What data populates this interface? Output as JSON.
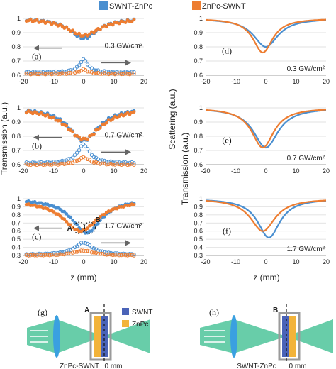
{
  "colors": {
    "blue": "#4a8fd0",
    "orange": "#ed7d31",
    "beam": "#4ec49a",
    "lens": "#3aa0e0",
    "swnt": "#4a63b8",
    "znpc": "#f2b33a",
    "cell": "#9a9a9a"
  },
  "legend": [
    "SWNT-ZnPc",
    "ZnPc-SWNT"
  ],
  "axis_titles": {
    "left_y": "Transmission (a.u.)",
    "mid_y": "Scattering (a.u.)",
    "right_y": "Transmission (a.u.)",
    "x": "z (mm)"
  },
  "chart_data": [
    {
      "panel": "(a)",
      "type": "scatter",
      "annotation": "0.3 GW/cm²",
      "xlim": [
        -20,
        20
      ],
      "ylim": [
        0.6,
        1.0
      ],
      "xticks": [
        "-20",
        "-10",
        "0",
        "10",
        "20"
      ],
      "yticks": [
        "1",
        "0.9",
        "0.8",
        "0.7",
        "0.6"
      ],
      "series": [
        {
          "name": "SWNT-ZnPc",
          "kind": "transmission",
          "dip": 0.14,
          "width": 5.5,
          "base": 1.0
        },
        {
          "name": "ZnPc-SWNT",
          "kind": "transmission",
          "dip": 0.12,
          "width": 6.5,
          "base": 1.0
        },
        {
          "name": "SWNT-ZnPc",
          "kind": "scattering",
          "peak": 0.09,
          "width": 1.8,
          "base": 0.62
        },
        {
          "name": "ZnPc-SWNT",
          "kind": "scattering",
          "peak": 0.03,
          "width": 1.8,
          "base": 0.61
        }
      ]
    },
    {
      "panel": "(b)",
      "type": "scatter",
      "annotation": "0.7 GW/cm²",
      "xlim": [
        -20,
        20
      ],
      "ylim": [
        0.6,
        1.0
      ],
      "xticks": [
        "-20",
        "-10",
        "0",
        "10",
        "20"
      ],
      "yticks": [
        "1",
        "0.9",
        "0.8",
        "0.7",
        "0.6"
      ],
      "series": [
        {
          "name": "SWNT-ZnPc",
          "kind": "transmission",
          "dip": 0.23,
          "width": 6.0,
          "base": 1.0
        },
        {
          "name": "ZnPc-SWNT",
          "kind": "transmission",
          "dip": 0.22,
          "width": 7.0,
          "base": 1.0
        },
        {
          "name": "SWNT-ZnPc",
          "kind": "scattering",
          "peak": 0.13,
          "width": 2.5,
          "base": 0.61
        },
        {
          "name": "ZnPc-SWNT",
          "kind": "scattering",
          "peak": 0.05,
          "width": 2.5,
          "base": 0.6
        }
      ]
    },
    {
      "panel": "(c)",
      "type": "scatter",
      "annotation": "1.7 GW/cm²",
      "xlim": [
        -20,
        20
      ],
      "ylim": [
        0.3,
        1.0
      ],
      "xticks": [
        "-20",
        "-10",
        "0",
        "10",
        "20"
      ],
      "yticks": [
        "1",
        "0.9",
        "0.8",
        "0.7",
        "0.6",
        "0.5",
        "0.4",
        "0.3"
      ],
      "series": [
        {
          "name": "SWNT-ZnPc",
          "kind": "transmission",
          "dip": 0.42,
          "width": 6.0,
          "base": 1.0,
          "center": 1.0
        },
        {
          "name": "ZnPc-SWNT",
          "kind": "transmission",
          "dip": 0.38,
          "width": 7.0,
          "base": 0.98,
          "center": -1.0
        },
        {
          "name": "SWNT-ZnPc",
          "kind": "scattering",
          "peak": 0.15,
          "width": 3.5,
          "base": 0.31
        },
        {
          "name": "ZnPc-SWNT",
          "kind": "scattering",
          "peak": 0.06,
          "width": 4.0,
          "base": 0.3
        }
      ],
      "markers": [
        "A",
        "B"
      ]
    },
    {
      "panel": "(d)",
      "type": "line",
      "annotation": "0.3 GW/cm²",
      "xlim": [
        -20,
        20
      ],
      "ylim": [
        0.6,
        1.0
      ],
      "xticks": [
        "-20",
        "-10",
        "0",
        "10",
        "20"
      ],
      "yticks": [
        "1",
        "0.9",
        "0.8",
        "0.7",
        "0.6"
      ],
      "series": [
        {
          "name": "SWNT-ZnPc",
          "dip": 0.2,
          "width": 5.0,
          "center": 0.0
        },
        {
          "name": "ZnPc-SWNT",
          "dip": 0.24,
          "width": 4.0,
          "center": -1.0
        }
      ]
    },
    {
      "panel": "(e)",
      "type": "line",
      "annotation": "0.7 GW/cm²",
      "xlim": [
        -20,
        20
      ],
      "ylim": [
        0.6,
        1.0
      ],
      "xticks": [
        "-20",
        "-10",
        "0",
        "10",
        "20"
      ],
      "yticks": [
        "1",
        "0.9",
        "0.8",
        "0.7",
        "0.6"
      ],
      "series": [
        {
          "name": "SWNT-ZnPc",
          "dip": 0.28,
          "width": 5.0,
          "center": 0.0
        },
        {
          "name": "ZnPc-SWNT",
          "dip": 0.28,
          "width": 4.5,
          "center": -1.0
        }
      ]
    },
    {
      "panel": "(f)",
      "type": "line",
      "annotation": "1.7 GW/cm²",
      "xlim": [
        -20,
        20
      ],
      "ylim": [
        0.3,
        1.0
      ],
      "xticks": [
        "-20",
        "-10",
        "0",
        "10",
        "20"
      ],
      "yticks": [
        "1",
        "0.9",
        "0.8",
        "0.7",
        "0.6",
        "0.5",
        "0.4",
        "0.3"
      ],
      "series": [
        {
          "name": "SWNT-ZnPc",
          "dip": 0.48,
          "width": 4.5,
          "center": 1.0
        },
        {
          "name": "ZnPc-SWNT",
          "dip": 0.4,
          "width": 5.0,
          "center": -1.0
        }
      ]
    }
  ],
  "schematics": [
    {
      "panel": "(g)",
      "cell_label": "A",
      "sample_label": "ZnPc-SWNT",
      "zero_label": "0 mm"
    },
    {
      "panel": "(h)",
      "cell_label": "B",
      "sample_label": "SWNT-ZnPc",
      "zero_label": "0 mm"
    }
  ],
  "schematic_legend": [
    "SWNT",
    "ZnPc"
  ]
}
